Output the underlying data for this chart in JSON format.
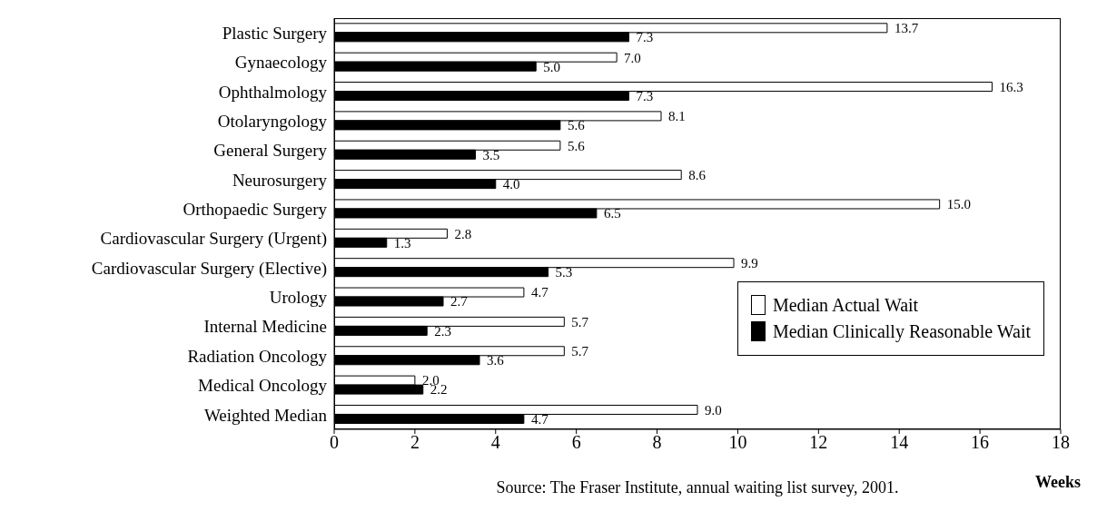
{
  "chart_data": {
    "type": "bar",
    "orientation": "horizontal",
    "xlabel": "Weeks",
    "categories": [
      "Plastic Surgery",
      "Gynaecology",
      "Ophthalmology",
      "Otolaryngology",
      "General Surgery",
      "Neurosurgery",
      "Orthopaedic Surgery",
      "Cardiovascular Surgery (Urgent)",
      "Cardiovascular Surgery (Elective)",
      "Urology",
      "Internal Medicine",
      "Radiation Oncology",
      "Medical Oncology",
      "Weighted Median"
    ],
    "series": [
      {
        "name": "Median Actual Wait",
        "color": "#ffffff",
        "values": [
          13.7,
          7.0,
          16.3,
          8.1,
          5.6,
          8.6,
          15.0,
          2.8,
          9.9,
          4.7,
          5.7,
          5.7,
          2.0,
          9.0
        ],
        "value_labels": [
          "13.7",
          "7.0",
          "16.3",
          "8.1",
          "5.6",
          "8.6",
          "15.0",
          "2.8",
          "9.9",
          "4.7",
          "5.7",
          "5.7",
          "2.0",
          "9.0"
        ]
      },
      {
        "name": "Median Clinically Reasonable Wait",
        "color": "#000000",
        "values": [
          7.3,
          5.0,
          7.3,
          5.6,
          3.5,
          4.0,
          6.5,
          1.3,
          5.3,
          2.7,
          2.3,
          3.6,
          2.2,
          4.7
        ],
        "value_labels": [
          "7.3",
          "5.0",
          "7.3",
          "5.6",
          "3.5",
          "4.0",
          "6.5",
          "1.3",
          "5.3",
          "2.7",
          "2.3",
          "3.6",
          "2.2",
          "4.7"
        ]
      }
    ],
    "xlim": [
      0,
      18
    ],
    "xticks": [
      0,
      2,
      4,
      6,
      8,
      10,
      12,
      14,
      16,
      18
    ],
    "legend": "bottom right",
    "annotations": [
      "Source: The Fraser Institute, annual waiting list survey, 2001."
    ]
  }
}
